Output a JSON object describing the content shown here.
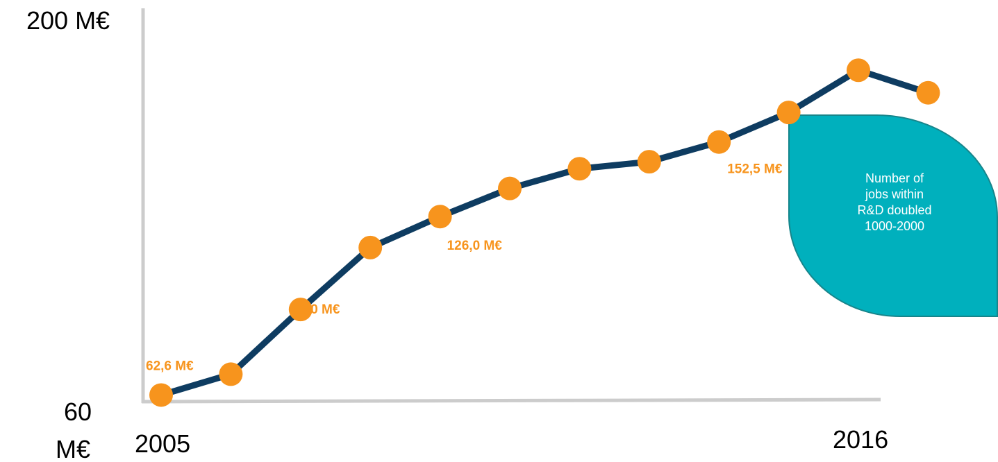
{
  "chart_data": {
    "type": "line",
    "x": [
      2005,
      2006,
      2007,
      2008,
      2009,
      2010,
      2011,
      2012,
      2013,
      2014,
      2015,
      2016
    ],
    "values": [
      62.6,
      70.0,
      93.0,
      115.0,
      126.0,
      136.0,
      143.0,
      145.5,
      152.5,
      163.0,
      178.0,
      170.0
    ],
    "ylim": [
      60,
      200
    ],
    "y_tick_labels": {
      "top": "200 M€",
      "bottom_line1": "60",
      "bottom_line2": "M€"
    },
    "x_tick_labels": {
      "start": "2005",
      "end": "2016"
    },
    "data_labels": [
      {
        "index": 0,
        "text": "62,6 M€"
      },
      {
        "index": 2,
        "text": "93,0 M€"
      },
      {
        "index": 4,
        "text": "126,0 M€"
      },
      {
        "index": 8,
        "text": "152,5 M€"
      }
    ],
    "grid": false,
    "colors": {
      "line": "#0e3c61",
      "marker": "#f7941d",
      "axis": "#cccccc",
      "label": "#f7941d"
    }
  },
  "callout": {
    "lines": [
      "Number of",
      "jobs within",
      "R&D doubled",
      "1000-2000"
    ],
    "color": "#00b0bd",
    "border": "#17858b"
  }
}
